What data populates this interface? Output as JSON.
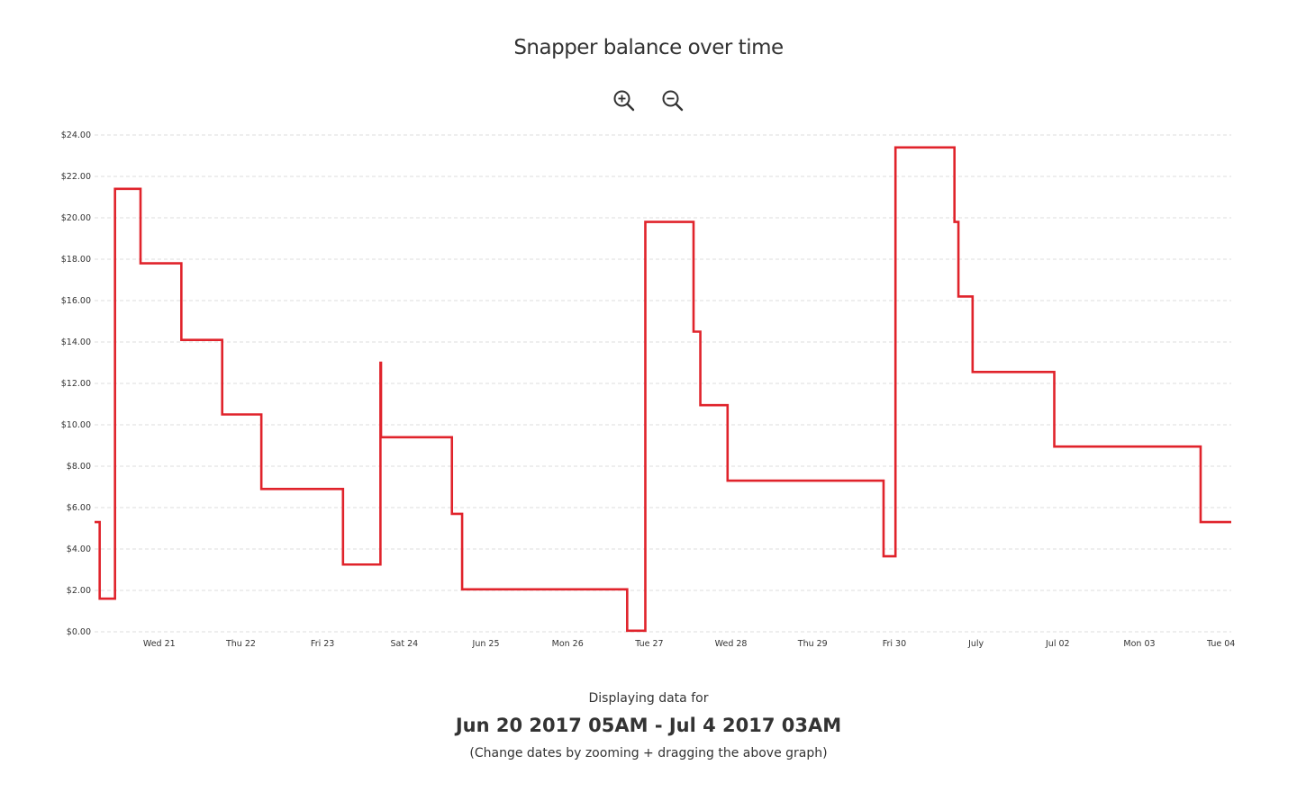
{
  "header": {
    "title": "Snapper balance over time"
  },
  "toolbar": {
    "zoom_in_icon": "zoom-in-magnifier",
    "zoom_out_icon": "zoom-out-magnifier"
  },
  "chart_data": {
    "type": "line",
    "interpolation": "step",
    "title": "Snapper balance over time",
    "color": "#e0232b",
    "grid": "horizontal-dashed",
    "ylim": [
      0,
      24
    ],
    "y_ticks": [
      "$0.00",
      "$2.00",
      "$4.00",
      "$6.00",
      "$8.00",
      "$10.00",
      "$12.00",
      "$14.00",
      "$16.00",
      "$18.00",
      "$20.00",
      "$22.00",
      "$24.00"
    ],
    "xlim": [
      "2017-06-20 05:00",
      "2017-07-04 03:00"
    ],
    "x_ticks": [
      {
        "label": "Wed 21",
        "at": "2017-06-21 00:00"
      },
      {
        "label": "Thu 22",
        "at": "2017-06-22 00:00"
      },
      {
        "label": "Fri 23",
        "at": "2017-06-23 00:00"
      },
      {
        "label": "Sat 24",
        "at": "2017-06-24 00:00"
      },
      {
        "label": "Jun 25",
        "at": "2017-06-25 00:00"
      },
      {
        "label": "Mon 26",
        "at": "2017-06-26 00:00"
      },
      {
        "label": "Tue 27",
        "at": "2017-06-27 00:00"
      },
      {
        "label": "Wed 28",
        "at": "2017-06-28 00:00"
      },
      {
        "label": "Thu 29",
        "at": "2017-06-29 00:00"
      },
      {
        "label": "Fri 30",
        "at": "2017-06-30 00:00"
      },
      {
        "label": "July",
        "at": "2017-07-01 00:00"
      },
      {
        "label": "Jul 02",
        "at": "2017-07-02 00:00"
      },
      {
        "label": "Mon 03",
        "at": "2017-07-03 00:00"
      },
      {
        "label": "Tue 04",
        "at": "2017-07-04 00:00"
      }
    ],
    "series": [
      {
        "points": [
          {
            "x": "2017-06-20 05:00",
            "y": 5.3
          },
          {
            "x": "2017-06-20 06:30",
            "y": 1.6
          },
          {
            "x": "2017-06-20 11:00",
            "y": 21.4
          },
          {
            "x": "2017-06-20 18:30",
            "y": 17.8
          },
          {
            "x": "2017-06-21 06:30",
            "y": 14.1
          },
          {
            "x": "2017-06-21 18:30",
            "y": 10.5
          },
          {
            "x": "2017-06-22 06:00",
            "y": 6.9
          },
          {
            "x": "2017-06-23 06:00",
            "y": 3.25
          },
          {
            "x": "2017-06-23 17:00",
            "y": 13.0
          },
          {
            "x": "2017-06-23 17:10",
            "y": 9.4
          },
          {
            "x": "2017-06-24 14:00",
            "y": 5.7
          },
          {
            "x": "2017-06-24 17:00",
            "y": 2.05
          },
          {
            "x": "2017-06-26 17:30",
            "y": 0.05
          },
          {
            "x": "2017-06-26 22:50",
            "y": 19.8
          },
          {
            "x": "2017-06-27 13:00",
            "y": 14.5
          },
          {
            "x": "2017-06-27 15:00",
            "y": 10.95
          },
          {
            "x": "2017-06-27 23:00",
            "y": 7.3
          },
          {
            "x": "2017-06-29 20:50",
            "y": 3.65
          },
          {
            "x": "2017-06-30 00:20",
            "y": 23.4
          },
          {
            "x": "2017-06-30 17:40",
            "y": 19.8
          },
          {
            "x": "2017-06-30 18:50",
            "y": 16.2
          },
          {
            "x": "2017-06-30 23:00",
            "y": 12.55
          },
          {
            "x": "2017-07-01 23:00",
            "y": 8.95
          },
          {
            "x": "2017-07-03 18:00",
            "y": 5.3
          },
          {
            "x": "2017-07-04 03:00",
            "y": 5.3
          }
        ]
      }
    ]
  },
  "footer": {
    "caption": "Displaying data for",
    "range": "Jun 20 2017 05AM - Jul 4 2017 03AM",
    "hint": "(Change dates by zooming + dragging the above graph)"
  }
}
